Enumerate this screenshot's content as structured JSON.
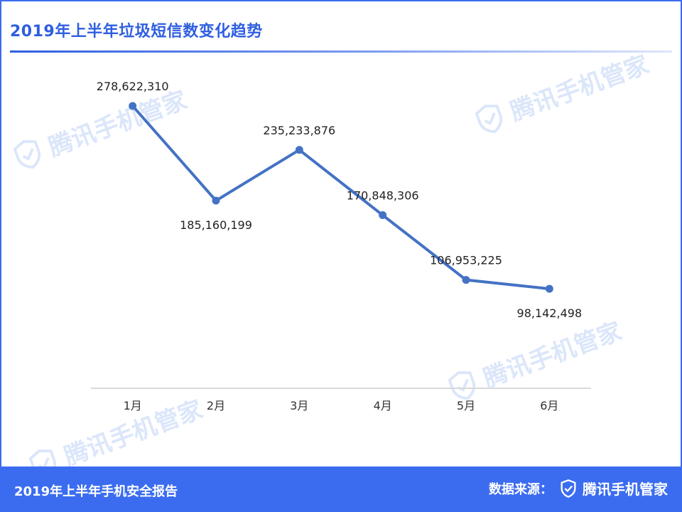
{
  "header": {
    "title": "2019年上半年垃圾短信数变化趋势"
  },
  "watermark": {
    "text": "腾讯手机管家",
    "icon": "shield-check-icon"
  },
  "footer": {
    "report_title": "2019年上半年手机安全报告",
    "source_label": "数据来源：",
    "brand_name": "腾讯手机管家",
    "brand_icon": "shield-check-icon"
  },
  "colors": {
    "accent": "#3b6cf0",
    "line": "#4472c4",
    "axis": "#d9d9d9",
    "watermark": "#dbe6fa"
  },
  "chart_data": {
    "type": "line",
    "categories": [
      "1月",
      "2月",
      "3月",
      "4月",
      "5月",
      "6月"
    ],
    "values": [
      278622310,
      185160199,
      235233876,
      170848306,
      106953225,
      98142498
    ],
    "data_labels": [
      "278,622,310",
      "185,160,199",
      "235,233,876",
      "170,848,306",
      "106,953,225",
      "98,142,498"
    ],
    "label_positions": [
      "above",
      "below",
      "above",
      "above",
      "above",
      "below"
    ],
    "ylim": [
      0,
      320000000
    ],
    "title": "2019年上半年垃圾短信数变化趋势",
    "xlabel": "",
    "ylabel": "",
    "grid": false,
    "legend": "none"
  }
}
